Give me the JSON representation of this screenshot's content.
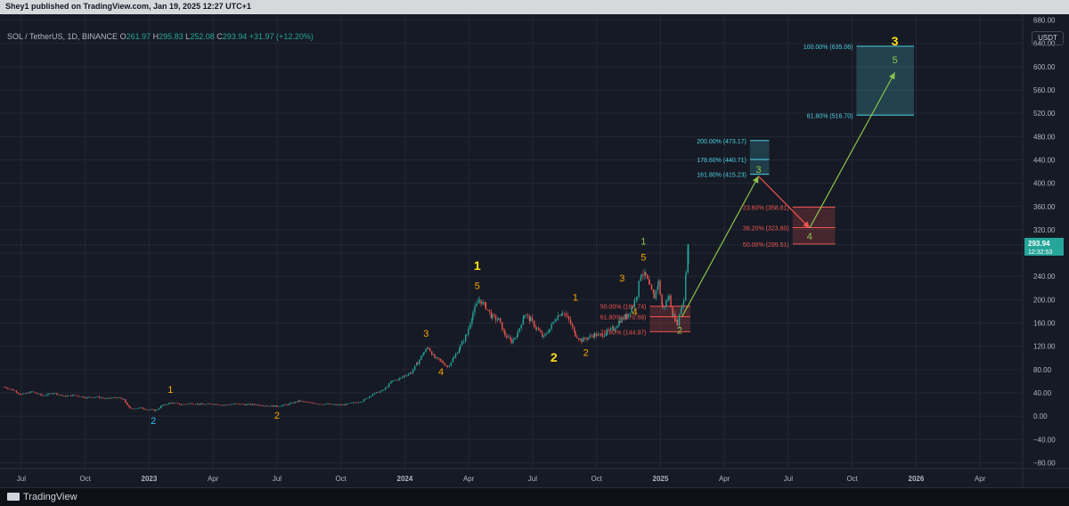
{
  "header": {
    "publish_line": "Shey1 published on TradingView.com, Jan 19, 2025 12:27 UTC+1"
  },
  "symbol": {
    "name": "SOL / TetherUS, 1D, BINANCE",
    "o_label": "O",
    "o_value": "261.97",
    "h_label": "H",
    "h_value": "295.83",
    "l_label": "L",
    "l_value": "252.08",
    "c_label": "C",
    "c_value": "293.94",
    "change": "+31.97 (+12.20%)"
  },
  "currency_button": "USDT",
  "footer": {
    "logo_text": "TradingView"
  },
  "colors": {
    "background": "#161a25",
    "grid": "#232734",
    "up": "#26a69a",
    "down": "#ef5350",
    "wave_orange": "#f7a600",
    "wave_yellow": "#ffe11a",
    "wave_green": "#8bc34a",
    "wave_blue": "#29b6f6",
    "fib_cyan": "#4dd0e1",
    "fib_red": "#ef5350"
  },
  "chart_data": {
    "type": "candlestick",
    "price_axis": {
      "ylim": [
        -90,
        690
      ],
      "ticks": [
        "680.00",
        "640.00",
        "600.00",
        "560.00",
        "520.00",
        "480.00",
        "440.00",
        "400.00",
        "360.00",
        "320.00",
        "280.00",
        "240.00",
        "200.00",
        "160.00",
        "120.00",
        "80.00",
        "40.00",
        "0.00",
        "−40.00",
        "−80.00"
      ],
      "tick_values": [
        680,
        640,
        600,
        560,
        520,
        480,
        440,
        400,
        360,
        320,
        280,
        240,
        200,
        160,
        120,
        80,
        40,
        0,
        -40,
        -80
      ]
    },
    "time_axis": {
      "labels": [
        "Jul",
        "Oct",
        "2023",
        "Apr",
        "Jul",
        "Oct",
        "2024",
        "Apr",
        "Jul",
        "Oct",
        "2025",
        "Apr",
        "Jul",
        "Oct",
        "2026",
        "Apr"
      ],
      "label_months": [
        6,
        9,
        12,
        15,
        18,
        21,
        24,
        27,
        30,
        33,
        36,
        39,
        42,
        45,
        48,
        51
      ],
      "bold": [
        "2023",
        "2024",
        "2025",
        "2026"
      ],
      "start_month": 5,
      "end_month": 53
    },
    "last_price": {
      "value": 293.94,
      "label": "293.94",
      "countdown": "12:32:53"
    },
    "price_path": [
      [
        5.2,
        50
      ],
      [
        5.6,
        45
      ],
      [
        6.0,
        37
      ],
      [
        6.5,
        42
      ],
      [
        7.0,
        35
      ],
      [
        7.5,
        40
      ],
      [
        8.0,
        34
      ],
      [
        8.5,
        36
      ],
      [
        9.0,
        32
      ],
      [
        9.5,
        33
      ],
      [
        10.0,
        30
      ],
      [
        10.5,
        32
      ],
      [
        10.8,
        28
      ],
      [
        11.1,
        13
      ],
      [
        11.6,
        14
      ],
      [
        12.0,
        11
      ],
      [
        12.3,
        10
      ],
      [
        12.6,
        18
      ],
      [
        13.0,
        23
      ],
      [
        13.5,
        20
      ],
      [
        14.0,
        22
      ],
      [
        14.5,
        20
      ],
      [
        15.0,
        21
      ],
      [
        15.5,
        19
      ],
      [
        16.0,
        21
      ],
      [
        16.5,
        20
      ],
      [
        17.0,
        20
      ],
      [
        17.5,
        18
      ],
      [
        18.0,
        17
      ],
      [
        18.5,
        20
      ],
      [
        19.0,
        26
      ],
      [
        19.5,
        23
      ],
      [
        20.0,
        21
      ],
      [
        20.5,
        20
      ],
      [
        21.0,
        19
      ],
      [
        21.5,
        22
      ],
      [
        22.0,
        26
      ],
      [
        22.5,
        38
      ],
      [
        23.0,
        45
      ],
      [
        23.4,
        60
      ],
      [
        23.8,
        65
      ],
      [
        24.0,
        70
      ],
      [
        24.3,
        75
      ],
      [
        24.6,
        92
      ],
      [
        24.9,
        110
      ],
      [
        25.1,
        118
      ],
      [
        25.4,
        100
      ],
      [
        25.7,
        94
      ],
      [
        26.0,
        85
      ],
      [
        26.3,
        100
      ],
      [
        26.6,
        120
      ],
      [
        26.9,
        140
      ],
      [
        27.2,
        178
      ],
      [
        27.5,
        200
      ],
      [
        27.8,
        188
      ],
      [
        28.1,
        170
      ],
      [
        28.4,
        165
      ],
      [
        28.7,
        140
      ],
      [
        29.0,
        128
      ],
      [
        29.3,
        142
      ],
      [
        29.6,
        175
      ],
      [
        29.9,
        165
      ],
      [
        30.2,
        150
      ],
      [
        30.5,
        135
      ],
      [
        30.8,
        150
      ],
      [
        31.1,
        170
      ],
      [
        31.4,
        180
      ],
      [
        31.7,
        165
      ],
      [
        32.0,
        140
      ],
      [
        32.3,
        130
      ],
      [
        32.6,
        135
      ],
      [
        32.9,
        140
      ],
      [
        33.2,
        138
      ],
      [
        33.5,
        145
      ],
      [
        33.8,
        150
      ],
      [
        34.1,
        165
      ],
      [
        34.4,
        172
      ],
      [
        34.7,
        190
      ],
      [
        34.9,
        210
      ],
      [
        35.1,
        248
      ],
      [
        35.3,
        240
      ],
      [
        35.5,
        220
      ],
      [
        35.7,
        205
      ],
      [
        35.9,
        230
      ],
      [
        36.1,
        185
      ],
      [
        36.4,
        205
      ],
      [
        36.6,
        172
      ],
      [
        36.8,
        160
      ],
      [
        37.0,
        190
      ],
      [
        37.1,
        200
      ],
      [
        37.2,
        252
      ],
      [
        37.3,
        293.94
      ]
    ],
    "elliott_labels": [
      {
        "t": 12.2,
        "p": 8,
        "text": "2",
        "color": "#29b6f6",
        "dy": 14
      },
      {
        "t": 13.0,
        "p": 22,
        "text": "1",
        "color": "#f7a600",
        "dy": -12
      },
      {
        "t": 18.0,
        "p": 17,
        "text": "2",
        "color": "#f7a600",
        "dy": 14
      },
      {
        "t": 25.0,
        "p": 118,
        "text": "3",
        "color": "#f7a600",
        "dy": -12
      },
      {
        "t": 25.7,
        "p": 92,
        "text": "4",
        "color": "#f7a600",
        "dy": 14
      },
      {
        "t": 27.4,
        "p": 200,
        "text": "5",
        "color": "#f7a600",
        "dy": -12
      },
      {
        "t": 27.4,
        "p": 205,
        "text": "1",
        "color": "#ffe11a",
        "dy": -30
      },
      {
        "t": 31.0,
        "p": 115,
        "text": "2",
        "color": "#ffe11a",
        "dy": 14
      },
      {
        "t": 32.0,
        "p": 180,
        "text": "1",
        "color": "#f7a600",
        "dy": -12
      },
      {
        "t": 32.5,
        "p": 125,
        "text": "2",
        "color": "#f7a600",
        "dy": 14
      },
      {
        "t": 34.2,
        "p": 225,
        "text": "3",
        "color": "#f7a600",
        "dy": -4
      },
      {
        "t": 34.8,
        "p": 170,
        "text": "4",
        "color": "#f7a600",
        "dy": -2
      },
      {
        "t": 35.2,
        "p": 252,
        "text": "5",
        "color": "#f7a600",
        "dy": -10
      },
      {
        "t": 35.2,
        "p": 255,
        "text": "1",
        "color": "#8bc34a",
        "dy": -26
      },
      {
        "t": 36.9,
        "p": 160,
        "text": "2",
        "color": "#8bc34a",
        "dy": 12
      },
      {
        "t": 40.6,
        "p": 415,
        "text": "3",
        "color": "#8bc34a",
        "dy": -2
      },
      {
        "t": 43.0,
        "p": 318,
        "text": "4",
        "color": "#8bc34a",
        "dy": 10
      },
      {
        "t": 47.0,
        "p": 615,
        "text": "3",
        "color": "#ffe11a",
        "dy": -14
      },
      {
        "t": 47.0,
        "p": 600,
        "text": "5",
        "color": "#8bc34a",
        "dy": -4
      }
    ],
    "projection_arrows": [
      {
        "from": [
          37.0,
          170
        ],
        "to": [
          40.6,
          412
        ],
        "color": "#8bc34a"
      },
      {
        "from": [
          40.6,
          412
        ],
        "to": [
          43.0,
          323
        ],
        "color": "#ef5350"
      },
      {
        "from": [
          43.0,
          323
        ],
        "to": [
          47.0,
          590
        ],
        "color": "#8bc34a"
      }
    ],
    "fib_zones": [
      {
        "t0": 35.5,
        "t1": 37.4,
        "top": 188.74,
        "bottom": 144.97,
        "fill": "rgba(239,83,80,0.22)",
        "line": "#ef5350",
        "levels": [
          {
            "p": 188.74,
            "label": "50.00% (188.74)"
          },
          {
            "p": 170.68,
            "label": "61.80% (170.68)"
          },
          {
            "p": 144.97,
            "label": "78.60% (144.97)"
          }
        ]
      },
      {
        "t0": 40.2,
        "t1": 41.1,
        "top": 473.17,
        "bottom": 415.23,
        "fill": "rgba(77,208,225,0.20)",
        "line": "#4dd0e1",
        "levels": [
          {
            "p": 473.17,
            "label": "200.00% (473.17)"
          },
          {
            "p": 440.71,
            "label": "178.60% (440.71)"
          },
          {
            "p": 415.23,
            "label": "161.80% (415.23)"
          }
        ]
      },
      {
        "t0": 42.2,
        "t1": 44.2,
        "top": 358.81,
        "bottom": 295.51,
        "fill": "rgba(239,83,80,0.22)",
        "line": "#ef5350",
        "levels": [
          {
            "p": 358.81,
            "label": "23.60% (358.81)"
          },
          {
            "p": 323.8,
            "label": "38.20% (323.80)"
          },
          {
            "p": 295.51,
            "label": "50.00% (295.51)"
          }
        ]
      },
      {
        "t0": 45.2,
        "t1": 47.9,
        "top": 635.06,
        "bottom": 516.7,
        "fill": "rgba(77,208,225,0.22)",
        "line": "#4dd0e1",
        "levels": [
          {
            "p": 635.06,
            "label": "100.00% (635.06)"
          },
          {
            "p": 516.7,
            "label": "61.80% (516.70)"
          }
        ]
      }
    ]
  }
}
